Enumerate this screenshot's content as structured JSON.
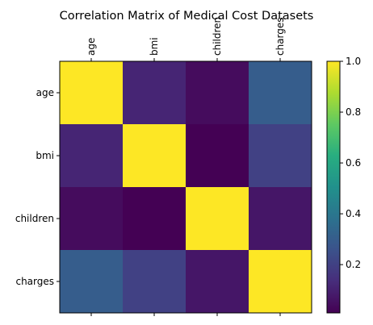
{
  "chart_data": {
    "type": "heatmap",
    "title": "Correlation Matrix of Medical Cost Datasets",
    "xlabels": [
      "age",
      "bmi",
      "children",
      "charges"
    ],
    "ylabels": [
      "age",
      "bmi",
      "children",
      "charges"
    ],
    "values": [
      [
        1.0,
        0.11,
        0.04,
        0.3
      ],
      [
        0.11,
        1.0,
        0.01,
        0.2
      ],
      [
        0.04,
        0.01,
        1.0,
        0.07
      ],
      [
        0.3,
        0.2,
        0.07,
        1.0
      ]
    ],
    "colormap": "viridis",
    "vmin": 0.01,
    "vmax": 1.0,
    "colorbar_ticks": [
      "0.2",
      "0.4",
      "0.6",
      "0.8",
      "1.0"
    ],
    "colorbar_tick_values": [
      0.2,
      0.4,
      0.6,
      0.8,
      1.0
    ],
    "x_ticks_position": "top",
    "x_tick_rotation": "vertical",
    "grid": false
  }
}
